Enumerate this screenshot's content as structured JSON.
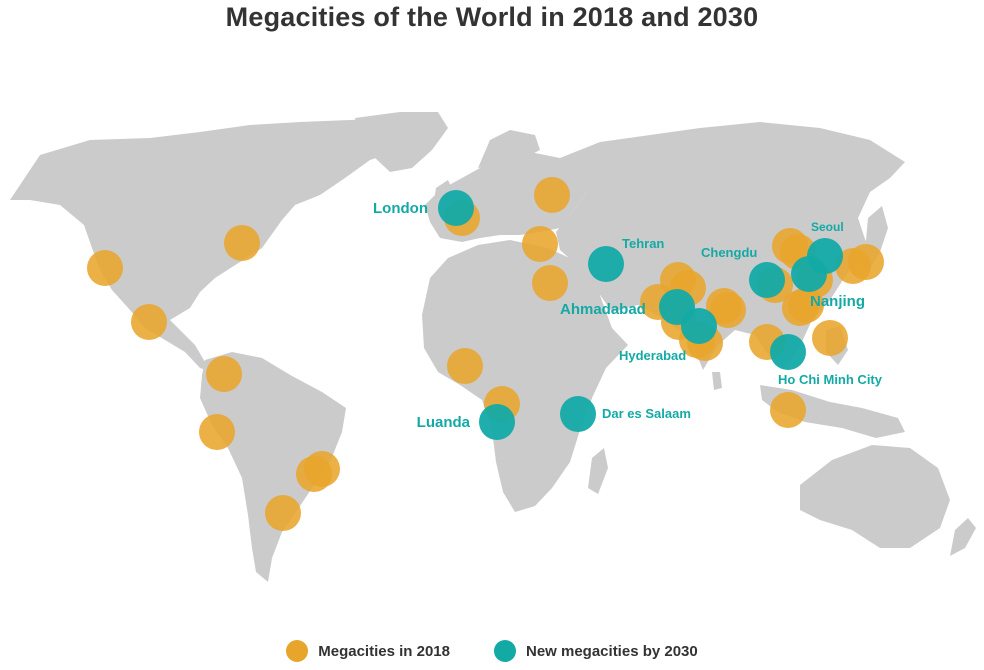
{
  "title": "Megacities of the World in 2018 and 2030",
  "colors": {
    "land": "#cbcbcb",
    "megacity_2018": "#e8a52c",
    "new_2030": "#13aaa6"
  },
  "legend": [
    {
      "label": "Megacities in 2018",
      "color": "#e8a52c"
    },
    {
      "label": "New megacities by 2030",
      "color": "#13aaa6"
    }
  ],
  "labels": {
    "london": "London",
    "tehran": "Tehran",
    "chengdu": "Chengdu",
    "seoul": "Seoul",
    "ahmadabad": "Ahmadabad",
    "nanjing": "Nanjing",
    "hyderabad": "Hyderabad",
    "ho_chi_minh_city": "Ho Chi Minh City",
    "luanda": "Luanda",
    "dar_es_salaam": "Dar es Salaam"
  }
}
